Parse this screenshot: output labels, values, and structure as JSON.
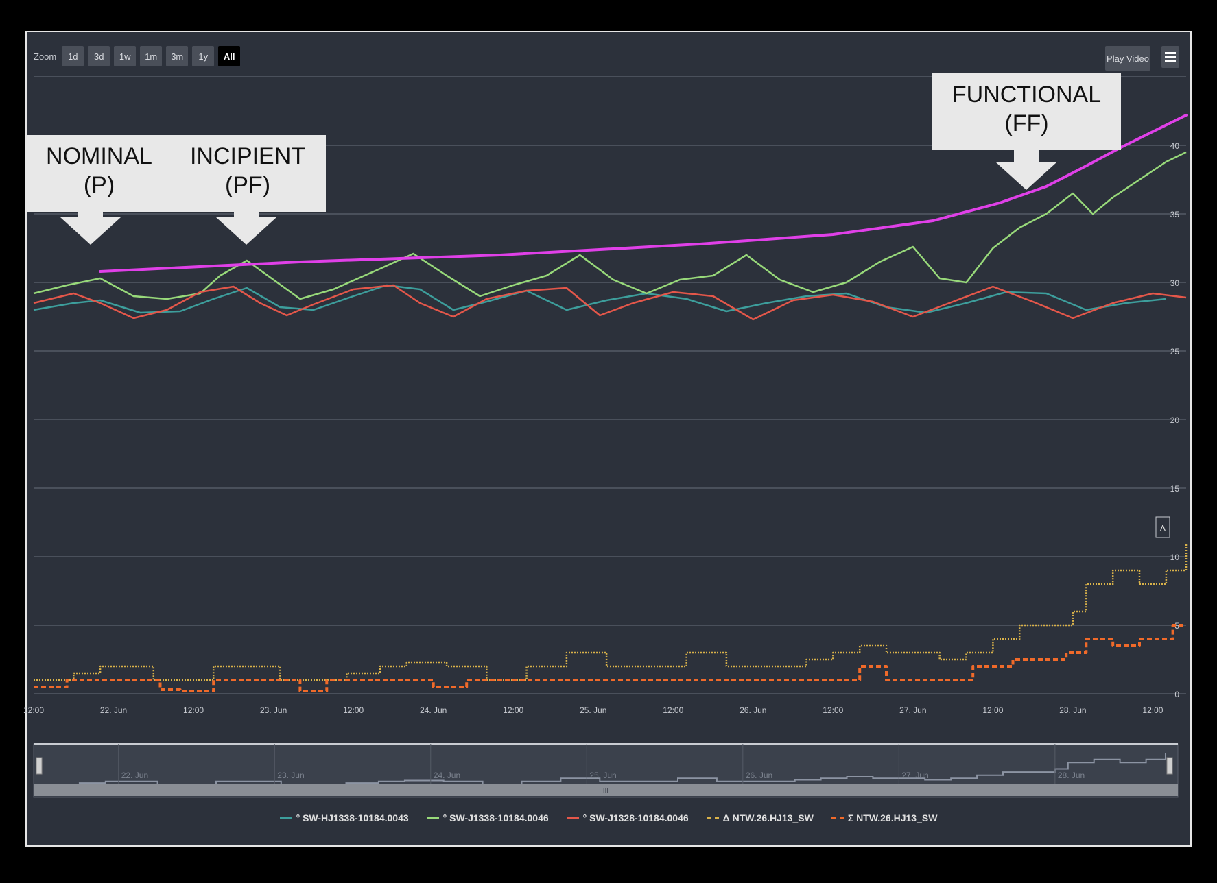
{
  "toolbar": {
    "zoom_label": "Zoom",
    "zoom_buttons": [
      "1d",
      "3d",
      "1w",
      "1m",
      "3m",
      "1y",
      "All"
    ],
    "active_zoom": "All",
    "play_video_label": "Play Video"
  },
  "annotations": [
    {
      "line1": "NOMINAL",
      "line2": "(P)"
    },
    {
      "line1": "INCIPIENT",
      "line2": "(PF)"
    },
    {
      "line1": "FUNCTIONAL",
      "line2": "(FF)"
    }
  ],
  "colors": {
    "background": "#2c313b",
    "trend": "#e040e8",
    "series_teal": "#3d9e9c",
    "series_green": "#98d97a",
    "series_red": "#e4574a",
    "series_yellow": "#d9b24a",
    "series_orange": "#f06a2a"
  },
  "chart_data": {
    "type": "line",
    "x_tick_labels": [
      "12:00",
      "22. Jun",
      "12:00",
      "23. Jun",
      "12:00",
      "24. Jun",
      "12:00",
      "25. Jun",
      "12:00",
      "26. Jun",
      "12:00",
      "27. Jun",
      "12:00",
      "28. Jun",
      "12:00"
    ],
    "x_ticks": [
      0,
      12,
      24,
      36,
      48,
      60,
      72,
      84,
      96,
      108,
      120,
      132,
      144,
      156,
      168
    ],
    "x_range": [
      0,
      173
    ],
    "y_tick_labels": [
      "0",
      "5",
      "10",
      "15",
      "20",
      "25",
      "30",
      "35",
      "40"
    ],
    "ylim": [
      0,
      45
    ],
    "delta_marker": "Δ",
    "navigator_labels": [
      "22. Jun",
      "23. Jun",
      "24. Jun",
      "25. Jun",
      "26. Jun",
      "27. Jun",
      "28. Jun"
    ],
    "navigator_handle": "III",
    "trend": {
      "x": [
        10,
        40,
        70,
        100,
        120,
        135,
        145,
        152,
        158,
        163,
        168,
        173
      ],
      "y": [
        30.8,
        31.5,
        32.0,
        32.8,
        33.5,
        34.5,
        35.8,
        37.0,
        38.5,
        39.8,
        41.0,
        42.2
      ]
    },
    "series": [
      {
        "name": "° SW-HJ1338-10184.0043",
        "style": "teal",
        "x": [
          0,
          6,
          10,
          16,
          22,
          27,
          32,
          37,
          42,
          48,
          53,
          58,
          63,
          68,
          74,
          80,
          86,
          92,
          98,
          104,
          110,
          116,
          122,
          128,
          134,
          140,
          146,
          152,
          158,
          164,
          170
        ],
        "y": [
          28.0,
          28.5,
          28.7,
          27.8,
          27.9,
          28.8,
          29.6,
          28.2,
          28.0,
          29.0,
          29.8,
          29.5,
          28.0,
          28.6,
          29.4,
          28.0,
          28.7,
          29.2,
          28.8,
          27.9,
          28.5,
          29.0,
          29.2,
          28.2,
          27.8,
          28.5,
          29.3,
          29.2,
          28.0,
          28.5,
          28.8
        ]
      },
      {
        "name": "° SW-J1338-10184.0046",
        "style": "green",
        "x": [
          0,
          5,
          10,
          15,
          20,
          25,
          28,
          32,
          36,
          40,
          45,
          52,
          57,
          62,
          67,
          72,
          77,
          82,
          87,
          92,
          97,
          102,
          107,
          112,
          117,
          122,
          127,
          132,
          136,
          140,
          144,
          148,
          152,
          156,
          159,
          162,
          166,
          170,
          173
        ],
        "y": [
          29.2,
          29.8,
          30.3,
          29.0,
          28.8,
          29.2,
          30.5,
          31.6,
          30.2,
          28.8,
          29.5,
          31.0,
          32.1,
          30.5,
          29.0,
          29.8,
          30.5,
          32.0,
          30.2,
          29.2,
          30.2,
          30.5,
          32.0,
          30.2,
          29.3,
          30.0,
          31.5,
          32.6,
          30.3,
          30.0,
          32.5,
          34.0,
          35.0,
          36.5,
          35.0,
          36.2,
          37.5,
          38.8,
          39.5
        ]
      },
      {
        "name": "° SW-J1328-10184.0046",
        "style": "red",
        "x": [
          0,
          6,
          10,
          15,
          20,
          25,
          30,
          34,
          38,
          42,
          48,
          54,
          58,
          63,
          68,
          74,
          80,
          85,
          90,
          96,
          102,
          108,
          114,
          120,
          126,
          132,
          138,
          144,
          150,
          156,
          162,
          168,
          173
        ],
        "y": [
          28.5,
          29.2,
          28.5,
          27.4,
          28.0,
          29.3,
          29.7,
          28.5,
          27.6,
          28.4,
          29.5,
          29.8,
          28.5,
          27.5,
          28.8,
          29.4,
          29.6,
          27.6,
          28.5,
          29.3,
          29.0,
          27.3,
          28.7,
          29.1,
          28.6,
          27.5,
          28.6,
          29.7,
          28.6,
          27.4,
          28.5,
          29.2,
          28.9
        ]
      },
      {
        "name": "Δ NTW.26.HJ13_SW",
        "style": "yellow",
        "step": true,
        "x": [
          0,
          6,
          10,
          14,
          18,
          22,
          27,
          32,
          37,
          42,
          47,
          52,
          56,
          62,
          68,
          74,
          80,
          86,
          92,
          98,
          104,
          110,
          116,
          120,
          124,
          128,
          132,
          136,
          140,
          144,
          148,
          152,
          156,
          158,
          162,
          166,
          170,
          173
        ],
        "y": [
          1,
          1.5,
          2,
          2,
          1,
          1,
          2,
          2,
          1,
          1,
          1.5,
          2,
          2.3,
          2,
          1,
          2,
          3,
          2,
          2,
          3,
          2,
          2,
          2.5,
          3,
          3.5,
          3,
          3,
          2.5,
          3,
          4,
          5,
          5,
          6,
          8,
          9,
          8,
          9,
          11
        ]
      },
      {
        "name": "Σ NTW.26.HJ13_SW",
        "style": "orange",
        "step": true,
        "x": [
          0,
          5,
          10,
          19,
          22,
          27,
          40,
          44,
          60,
          65,
          75,
          90,
          105,
          115,
          124,
          128,
          141,
          147,
          155,
          158,
          162,
          166,
          171,
          173
        ],
        "y": [
          0.5,
          1,
          1,
          0.3,
          0.2,
          1,
          0.2,
          1,
          0.5,
          1,
          1,
          1,
          1,
          1,
          2,
          1,
          2,
          2.5,
          3,
          4,
          3.5,
          4,
          5,
          5
        ]
      }
    ]
  }
}
